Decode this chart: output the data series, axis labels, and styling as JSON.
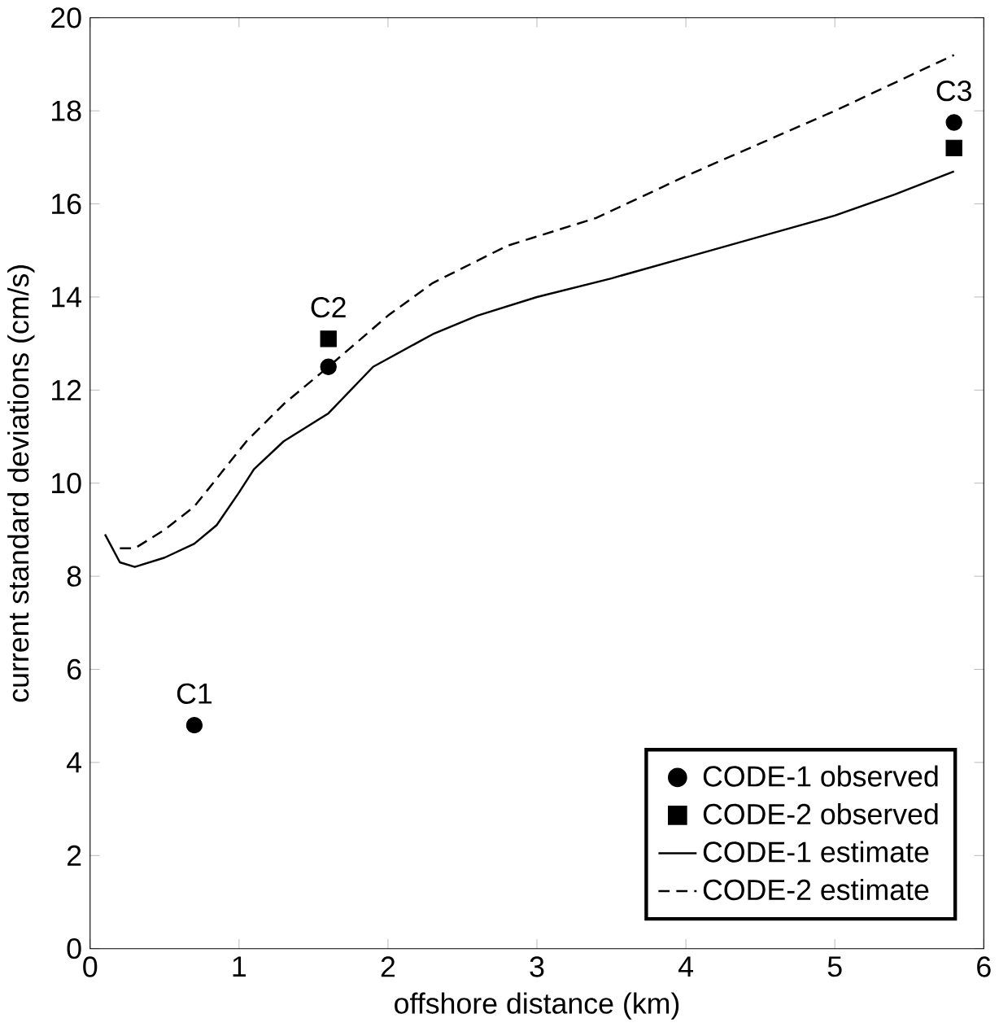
{
  "chart_data": {
    "type": "line",
    "xlabel": "offshore distance (km)",
    "ylabel": "current standard deviations (cm/s)",
    "xlim": [
      0,
      6
    ],
    "ylim": [
      0,
      20
    ],
    "xticks": [
      0,
      1,
      2,
      3,
      4,
      5,
      6
    ],
    "yticks": [
      0,
      2,
      4,
      6,
      8,
      10,
      12,
      14,
      16,
      18,
      20
    ],
    "grid": false,
    "legend": "bottom right",
    "series": [
      {
        "name": "CODE-1 observed",
        "type": "scatter",
        "marker": "circle",
        "color": "#000000",
        "x": [
          0.7,
          1.6,
          5.8
        ],
        "values": [
          4.8,
          12.5,
          17.75
        ]
      },
      {
        "name": "CODE-2 observed",
        "type": "scatter",
        "marker": "square",
        "color": "#000000",
        "x": [
          1.6,
          5.8
        ],
        "values": [
          13.1,
          17.2
        ]
      },
      {
        "name": "CODE-1 estimate",
        "line_style": "solid",
        "color": "#000000",
        "x": [
          0.1,
          0.2,
          0.3,
          0.5,
          0.7,
          0.85,
          1.0,
          1.1,
          1.3,
          1.6,
          1.9,
          2.3,
          2.6,
          3.0,
          3.5,
          4.0,
          4.5,
          5.0,
          5.4,
          5.8
        ],
        "values": [
          8.9,
          8.3,
          8.2,
          8.4,
          8.7,
          9.1,
          9.8,
          10.3,
          10.9,
          11.5,
          12.5,
          13.2,
          13.6,
          14.0,
          14.4,
          14.85,
          15.3,
          15.75,
          16.2,
          16.7
        ]
      },
      {
        "name": "CODE-2 estimate",
        "line_style": "dashed",
        "color": "#000000",
        "x": [
          0.2,
          0.3,
          0.5,
          0.7,
          0.9,
          1.05,
          1.3,
          1.6,
          2.0,
          2.3,
          2.8,
          3.4,
          4.0,
          4.5,
          5.0,
          5.8
        ],
        "values": [
          8.6,
          8.6,
          9.0,
          9.5,
          10.3,
          10.9,
          11.7,
          12.5,
          13.6,
          14.3,
          15.1,
          15.7,
          16.6,
          17.3,
          18.0,
          19.2
        ]
      }
    ],
    "annotations": [
      {
        "text": "C1",
        "x": 0.7,
        "y": 4.8
      },
      {
        "text": "C2",
        "x": 1.6,
        "y": 13.1
      },
      {
        "text": "C3",
        "x": 5.8,
        "y": 17.75
      }
    ]
  }
}
